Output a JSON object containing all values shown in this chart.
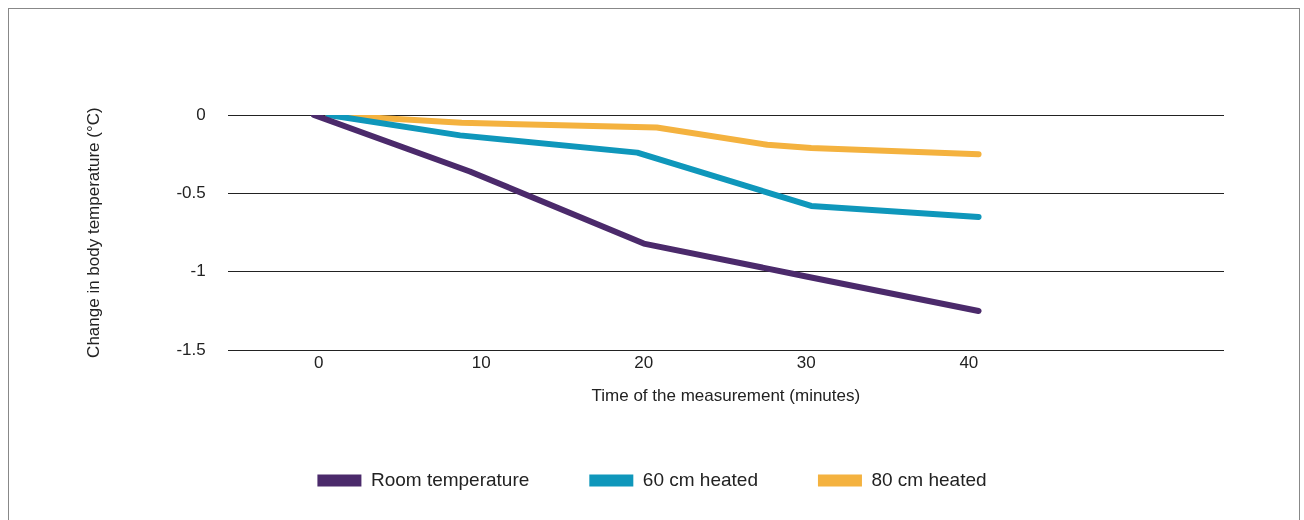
{
  "chart_data": {
    "type": "line",
    "xlabel": "Time of the measurement (minutes)",
    "ylabel": "Change in body temperature (°C)",
    "xlim": [
      -5.6,
      55.7
    ],
    "xticks": [
      0,
      10,
      20,
      30,
      40
    ],
    "ylim": [
      -1.5,
      0
    ],
    "yticks": [
      -1.5,
      -1,
      -0.5,
      0
    ],
    "grid": "y",
    "legend": "bottom",
    "marker": "none",
    "line_style": "solid",
    "series": [
      {
        "name": "Room temperature",
        "color": "#4b2a6b",
        "x": [
          -0.3,
          9.3,
          20,
          30,
          40.6
        ],
        "values": [
          0,
          -0.36,
          -0.82,
          -1.03,
          -1.25
        ]
      },
      {
        "name": "60 cm heated",
        "color": "#0f97bb",
        "x": [
          0.6,
          8.7,
          19.6,
          30.3,
          40.6
        ],
        "values": [
          0,
          -0.13,
          -0.24,
          -0.58,
          -0.65
        ]
      },
      {
        "name": "80 cm heated",
        "color": "#f4b23f",
        "x": [
          0.6,
          8.8,
          20.8,
          27.6,
          30.3,
          40.6
        ],
        "values": [
          0,
          -0.05,
          -0.08,
          -0.19,
          -0.21,
          -0.25
        ]
      }
    ]
  }
}
